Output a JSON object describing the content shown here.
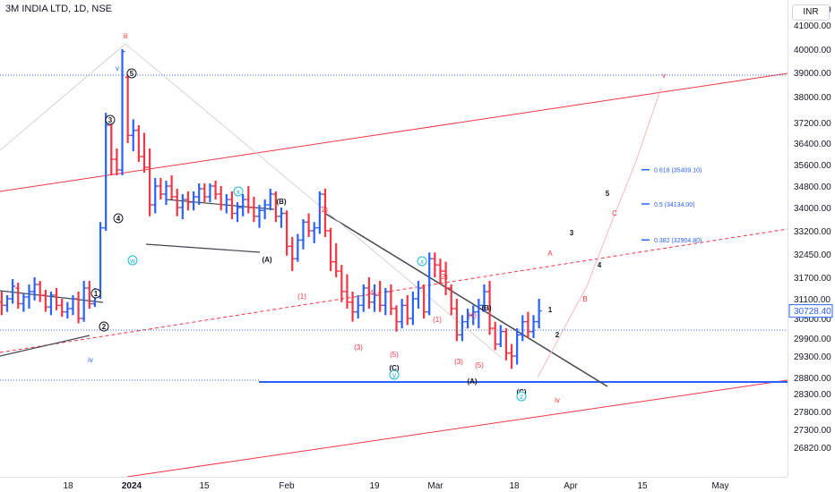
{
  "header": {
    "title": "3M INDIA LTD, 1D, NSE",
    "currency": "INR"
  },
  "price_axis": {
    "ticks": [
      "42000.00",
      "41000.00",
      "40000.00",
      "39000.00",
      "38000.00",
      "37200.00",
      "36400.00",
      "35600.00",
      "34800.00",
      "34000.00",
      "33200.00",
      "32450.00",
      "31700.00",
      "31100.00",
      "30500.00",
      "29900.00",
      "29300.00",
      "28800.00",
      "28300.00",
      "27800.00",
      "27300.00",
      "26820.00"
    ],
    "current_price": "30728.40"
  },
  "time_axis": {
    "labels": [
      "18",
      "2024",
      "15",
      "Feb",
      "19",
      "Mar",
      "18",
      "Apr",
      "15",
      "May"
    ]
  },
  "colors": {
    "up": "#2962ff",
    "down": "#f23645",
    "channel": "#f23645",
    "trendline": "#434651",
    "support": "#2962ff",
    "wave_blue": "#2962ff",
    "wave_red": "#f23645",
    "wave_cyan": "#22b6d4"
  },
  "chart_data": {
    "type": "ohlc",
    "symbol": "3M INDIA LTD",
    "interval": "1D",
    "exchange": "NSE",
    "currency": "INR",
    "ylim": [
      26500,
      42500
    ],
    "last_price": 30728.4,
    "fib_levels": [
      {
        "label": "0.618 (35409.10)",
        "price": 35409.1
      },
      {
        "label": "0.5 (34134.00)",
        "price": 34134.0
      },
      {
        "label": "0.382 (32904.80)",
        "price": 32904.8
      }
    ],
    "wave_labels": [
      {
        "text": "iii",
        "style": "red"
      },
      {
        "text": "v",
        "style": "blue"
      },
      {
        "text": "5",
        "style": "circle"
      },
      {
        "text": "3",
        "style": "circle"
      },
      {
        "text": "4",
        "style": "circle"
      },
      {
        "text": "w",
        "style": "cyan"
      },
      {
        "text": "1",
        "style": "circle"
      },
      {
        "text": "2",
        "style": "circle"
      },
      {
        "text": "iv",
        "style": "blue"
      },
      {
        "text": "x",
        "style": "cyan"
      },
      {
        "text": "(B)",
        "style": "black"
      },
      {
        "text": "(A)",
        "style": "black"
      },
      {
        "text": "(2)",
        "style": "red"
      },
      {
        "text": "(1)",
        "style": "red"
      },
      {
        "text": "(4)",
        "style": "red"
      },
      {
        "text": "(3)",
        "style": "red"
      },
      {
        "text": "(5)",
        "style": "red"
      },
      {
        "text": "(C)",
        "style": "black"
      },
      {
        "text": "y",
        "style": "cyan"
      },
      {
        "text": "x",
        "style": "cyan"
      },
      {
        "text": "(2)",
        "style": "red"
      },
      {
        "text": "(1)",
        "style": "red"
      },
      {
        "text": "(4)",
        "style": "red"
      },
      {
        "text": "(3)",
        "style": "red"
      },
      {
        "text": "(5)",
        "style": "red"
      },
      {
        "text": "(B)",
        "style": "black"
      },
      {
        "text": "(A)",
        "style": "black"
      },
      {
        "text": "(C)",
        "style": "black"
      },
      {
        "text": "z",
        "style": "cyan"
      },
      {
        "text": "iv",
        "style": "red"
      },
      {
        "text": "1",
        "style": "black"
      },
      {
        "text": "2",
        "style": "black"
      },
      {
        "text": "3",
        "style": "black"
      },
      {
        "text": "4",
        "style": "black"
      },
      {
        "text": "5",
        "style": "black"
      },
      {
        "text": "A",
        "style": "red"
      },
      {
        "text": "B",
        "style": "red"
      },
      {
        "text": "C",
        "style": "red"
      },
      {
        "text": "v",
        "style": "red"
      }
    ],
    "bars": [
      [
        -3,
        31250,
        31500,
        30900,
        31100
      ],
      [
        -2,
        31100,
        31400,
        30800,
        31000
      ],
      [
        -1,
        31000,
        31300,
        30600,
        30900
      ],
      [
        0,
        30900,
        31200,
        30700,
        31100
      ],
      [
        1,
        31100,
        31650,
        30950,
        31450
      ],
      [
        2,
        31400,
        31550,
        30800,
        30950
      ],
      [
        3,
        30950,
        31250,
        30700,
        31150
      ],
      [
        4,
        31150,
        31500,
        30800,
        31300
      ],
      [
        5,
        31300,
        31700,
        31050,
        31500
      ],
      [
        6,
        31500,
        31600,
        31000,
        31200
      ],
      [
        7,
        31200,
        31350,
        30700,
        30850
      ],
      [
        8,
        30850,
        31300,
        30600,
        31200
      ],
      [
        9,
        31200,
        31400,
        30750,
        30900
      ],
      [
        10,
        30900,
        31100,
        30550,
        30700
      ],
      [
        11,
        30700,
        31000,
        30500,
        30800
      ],
      [
        12,
        30800,
        31200,
        30600,
        31100
      ],
      [
        13,
        31100,
        31300,
        30350,
        30500
      ],
      [
        14,
        30500,
        31600,
        30400,
        31400
      ],
      [
        15,
        31400,
        31600,
        30800,
        30950
      ],
      [
        16,
        30950,
        31400,
        30850,
        31250
      ],
      [
        17,
        31250,
        33500,
        31100,
        33300
      ],
      [
        18,
        33300,
        37500,
        33200,
        37100
      ],
      [
        19,
        37100,
        37300,
        35200,
        35800
      ],
      [
        20,
        35800,
        36200,
        35200,
        35400
      ],
      [
        21,
        35400,
        40000,
        35200,
        39900
      ],
      [
        22,
        38800,
        39000,
        36400,
        36700
      ],
      [
        23,
        36700,
        37300,
        36100,
        36900
      ],
      [
        24,
        36900,
        37100,
        35700,
        35900
      ],
      [
        25,
        35900,
        36800,
        35300,
        35500
      ],
      [
        26,
        35500,
        36200,
        33700,
        34100
      ],
      [
        27,
        34100,
        35100,
        33800,
        34800
      ],
      [
        28,
        34800,
        35100,
        34300,
        34500
      ],
      [
        29,
        34500,
        35000,
        34100,
        34800
      ],
      [
        30,
        34800,
        35200,
        34300,
        34400
      ],
      [
        31,
        34400,
        34700,
        33700,
        34000
      ],
      [
        32,
        34000,
        34500,
        33600,
        34300
      ],
      [
        33,
        34300,
        34600,
        33900,
        34200
      ],
      [
        34,
        34200,
        34600,
        33900,
        34400
      ],
      [
        35,
        34400,
        34900,
        34100,
        34700
      ],
      [
        36,
        34700,
        34900,
        34200,
        34400
      ],
      [
        37,
        34400,
        34900,
        34200,
        34800
      ],
      [
        38,
        34800,
        35000,
        34300,
        34500
      ],
      [
        39,
        34500,
        34800,
        33900,
        34100
      ],
      [
        40,
        34100,
        34500,
        33800,
        34300
      ],
      [
        41,
        34300,
        34600,
        33600,
        33800
      ],
      [
        42,
        33800,
        34200,
        33500,
        34000
      ],
      [
        43,
        34000,
        34500,
        33700,
        34300
      ],
      [
        44,
        34300,
        34800,
        33800,
        34000
      ],
      [
        45,
        34000,
        34400,
        33500,
        33700
      ],
      [
        46,
        33700,
        34100,
        33300,
        33900
      ],
      [
        47,
        33900,
        34300,
        33600,
        34100
      ],
      [
        48,
        34100,
        34700,
        33900,
        34500
      ],
      [
        49,
        34500,
        34600,
        33500,
        33700
      ],
      [
        50,
        33700,
        34000,
        33300,
        33800
      ],
      [
        51,
        33800,
        33900,
        32400,
        32700
      ],
      [
        52,
        32700,
        33000,
        31900,
        32300
      ],
      [
        53,
        32300,
        33100,
        32200,
        32900
      ],
      [
        54,
        32900,
        33600,
        32600,
        33500
      ],
      [
        55,
        33500,
        33800,
        33000,
        33200
      ],
      [
        56,
        33200,
        33500,
        32800,
        33300
      ],
      [
        57,
        33300,
        34600,
        33100,
        34500
      ],
      [
        58,
        34500,
        34700,
        33000,
        33200
      ],
      [
        59,
        33200,
        33300,
        31900,
        32200
      ],
      [
        60,
        32200,
        32800,
        31700,
        31900
      ],
      [
        61,
        31900,
        32100,
        31000,
        31300
      ],
      [
        62,
        31300,
        31800,
        30800,
        31000
      ],
      [
        63,
        31000,
        31300,
        30400,
        30700
      ],
      [
        64,
        30700,
        31200,
        30500,
        30900
      ],
      [
        65,
        30900,
        31500,
        30700,
        31400
      ],
      [
        66,
        31400,
        31700,
        30800,
        31000
      ],
      [
        67,
        31000,
        31500,
        30700,
        31200
      ],
      [
        68,
        31200,
        31600,
        30700,
        30900
      ],
      [
        69,
        30900,
        31400,
        30600,
        31300
      ],
      [
        70,
        31300,
        31500,
        30600,
        30800
      ],
      [
        71,
        30800,
        30900,
        30100,
        30400
      ],
      [
        72,
        30400,
        31100,
        30200,
        30900
      ],
      [
        73,
        30900,
        31200,
        30300,
        30500
      ],
      [
        74,
        30500,
        31300,
        30300,
        31100
      ],
      [
        75,
        31100,
        31600,
        30800,
        31400
      ],
      [
        76,
        31400,
        31500,
        30500,
        30700
      ],
      [
        77,
        30700,
        32500,
        30600,
        32300
      ],
      [
        78,
        32300,
        32500,
        31700,
        32100
      ],
      [
        79,
        32100,
        32300,
        31500,
        31900
      ],
      [
        80,
        31900,
        32200,
        31200,
        31400
      ],
      [
        81,
        31400,
        31500,
        30600,
        30800
      ],
      [
        82,
        30800,
        31100,
        29800,
        30000
      ],
      [
        83,
        30000,
        30600,
        29800,
        30400
      ],
      [
        84,
        30400,
        30800,
        30200,
        30600
      ],
      [
        85,
        30600,
        30900,
        30300,
        30700
      ],
      [
        86,
        30700,
        31100,
        30200,
        30900
      ],
      [
        87,
        30900,
        31500,
        30700,
        31300
      ],
      [
        88,
        31300,
        31600,
        30000,
        30200
      ],
      [
        89,
        30200,
        30400,
        29500,
        29700
      ],
      [
        90,
        29700,
        30300,
        29600,
        30100
      ],
      [
        91,
        30100,
        30200,
        29200,
        29400
      ],
      [
        92,
        29400,
        29700,
        29000,
        29300
      ],
      [
        93,
        29300,
        30200,
        29100,
        30000
      ],
      [
        94,
        30000,
        30600,
        29800,
        30400
      ],
      [
        95,
        30400,
        30700,
        29900,
        30100
      ],
      [
        96,
        30100,
        30600,
        29900,
        30400
      ],
      [
        97,
        30400,
        31100,
        30200,
        30730
      ]
    ]
  }
}
